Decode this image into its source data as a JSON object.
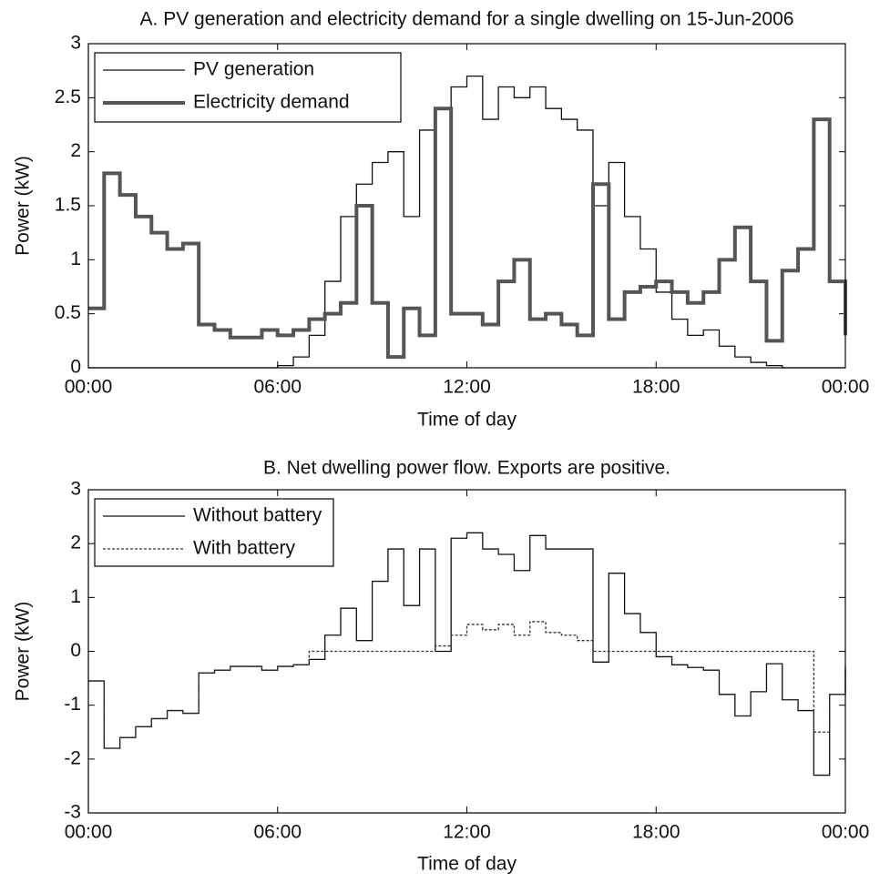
{
  "chart_data": [
    {
      "type": "line",
      "title": "A. PV generation and electricity demand for a single dwelling on 15-Jun-2006",
      "x_label": "Time of day",
      "y_label": "Power (kW)",
      "x": [
        0,
        0.5,
        1,
        1.5,
        2,
        2.5,
        3,
        3.5,
        4,
        4.5,
        5,
        5.5,
        6,
        6.5,
        7,
        7.5,
        8,
        8.5,
        9,
        9.5,
        10,
        10.5,
        11,
        11.5,
        12,
        12.5,
        13,
        13.5,
        14,
        14.5,
        15,
        15.5,
        16,
        16.5,
        17,
        17.5,
        18,
        18.5,
        19,
        19.5,
        20,
        20.5,
        21,
        21.5,
        22,
        22.5,
        23,
        23.5,
        24
      ],
      "series": [
        {
          "name": "PV generation",
          "color": "#111111",
          "values": [
            0,
            0,
            0,
            0,
            0,
            0,
            0,
            0,
            0,
            0,
            0,
            0,
            0.02,
            0.1,
            0.3,
            0.8,
            1.4,
            1.7,
            1.9,
            2.0,
            1.4,
            2.2,
            2.4,
            2.6,
            2.7,
            2.3,
            2.6,
            2.5,
            2.6,
            2.4,
            2.3,
            2.2,
            1.5,
            1.9,
            1.4,
            1.1,
            0.7,
            0.45,
            0.3,
            0.35,
            0.2,
            0.1,
            0.05,
            0.02,
            0,
            0,
            0,
            0,
            0
          ]
        },
        {
          "name": "Electricity demand",
          "color": "#555555",
          "values": [
            0.55,
            1.8,
            1.6,
            1.4,
            1.25,
            1.1,
            1.15,
            0.4,
            0.35,
            0.28,
            0.28,
            0.35,
            0.3,
            0.35,
            0.45,
            0.5,
            0.6,
            1.5,
            0.6,
            0.1,
            0.55,
            0.3,
            2.4,
            0.5,
            0.5,
            0.4,
            0.8,
            1.0,
            0.45,
            0.5,
            0.4,
            0.3,
            1.7,
            0.45,
            0.7,
            0.75,
            0.8,
            0.7,
            0.6,
            0.7,
            1.0,
            1.3,
            0.8,
            0.25,
            0.9,
            1.1,
            2.3,
            0.8,
            0.3
          ]
        }
      ],
      "xlim": [
        0,
        24
      ],
      "xticks": [
        {
          "value": 0,
          "label": "00:00"
        },
        {
          "value": 6,
          "label": "06:00"
        },
        {
          "value": 12,
          "label": "12:00"
        },
        {
          "value": 18,
          "label": "18:00"
        },
        {
          "value": 24,
          "label": "00:00"
        }
      ],
      "ylim": [
        0,
        3
      ],
      "yticks": [
        0,
        0.5,
        1,
        1.5,
        2,
        2.5,
        3
      ],
      "legend": "upper left"
    },
    {
      "type": "line",
      "title": "B. Net dwelling power flow. Exports are positive.",
      "x_label": "Time of day",
      "y_label": "Power (kW)",
      "x": [
        0,
        0.5,
        1,
        1.5,
        2,
        2.5,
        3,
        3.5,
        4,
        4.5,
        5,
        5.5,
        6,
        6.5,
        7,
        7.5,
        8,
        8.5,
        9,
        9.5,
        10,
        10.5,
        11,
        11.5,
        12,
        12.5,
        13,
        13.5,
        14,
        14.5,
        15,
        15.5,
        16,
        16.5,
        17,
        17.5,
        18,
        18.5,
        19,
        19.5,
        20,
        20.5,
        21,
        21.5,
        22,
        22.5,
        23,
        23.5,
        24
      ],
      "series": [
        {
          "name": "Without battery",
          "color": "#111111",
          "values": [
            -0.55,
            -1.8,
            -1.6,
            -1.4,
            -1.25,
            -1.1,
            -1.15,
            -0.4,
            -0.35,
            -0.28,
            -0.28,
            -0.35,
            -0.28,
            -0.25,
            -0.15,
            0.3,
            0.8,
            0.2,
            1.3,
            1.9,
            0.85,
            1.9,
            0.0,
            2.1,
            2.2,
            1.9,
            1.8,
            1.5,
            2.15,
            1.9,
            1.9,
            1.9,
            -0.2,
            1.45,
            0.7,
            0.35,
            -0.1,
            -0.25,
            -0.3,
            -0.35,
            -0.8,
            -1.2,
            -0.75,
            -0.23,
            -0.9,
            -1.1,
            -2.3,
            -0.8,
            -0.3
          ]
        },
        {
          "name": "With battery",
          "color": "#333333",
          "dashed": true,
          "values": [
            -0.55,
            -1.8,
            -1.6,
            -1.4,
            -1.25,
            -1.1,
            -1.15,
            -0.4,
            -0.35,
            -0.28,
            -0.28,
            -0.35,
            -0.28,
            -0.25,
            0,
            0,
            0,
            0,
            0,
            0,
            0,
            0,
            0.1,
            0.3,
            0.5,
            0.4,
            0.5,
            0.3,
            0.55,
            0.35,
            0.3,
            0.2,
            0,
            0,
            0,
            0,
            0,
            0,
            0,
            0,
            0,
            0,
            0,
            0,
            0,
            0,
            -1.5,
            -0.8,
            -0.3
          ]
        }
      ],
      "xlim": [
        0,
        24
      ],
      "xticks": [
        {
          "value": 0,
          "label": "00:00"
        },
        {
          "value": 6,
          "label": "06:00"
        },
        {
          "value": 12,
          "label": "12:00"
        },
        {
          "value": 18,
          "label": "18:00"
        },
        {
          "value": 24,
          "label": "00:00"
        }
      ],
      "ylim": [
        -3,
        3
      ],
      "yticks": [
        -3,
        -2,
        -1,
        0,
        1,
        2,
        3
      ],
      "legend": "upper left"
    }
  ]
}
